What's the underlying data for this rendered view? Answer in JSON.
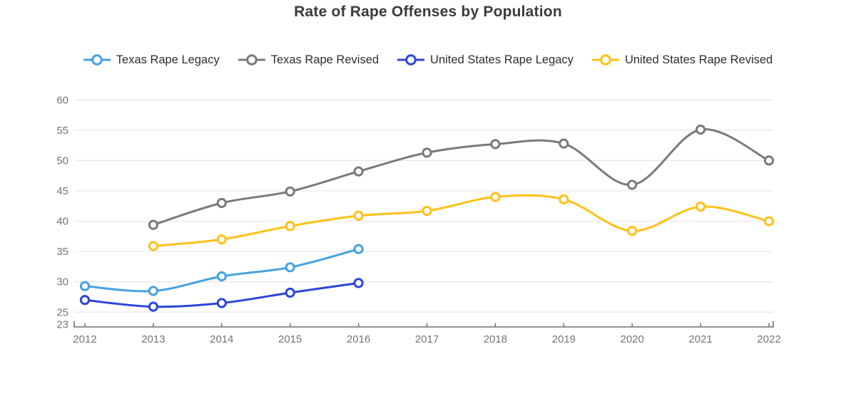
{
  "title": "Rate of Rape Offenses by Population",
  "axes": {
    "y_tick_labels": [
      "60",
      "55",
      "50",
      "45",
      "40",
      "35",
      "30",
      "25",
      "23"
    ],
    "x_tick_labels": [
      "2012",
      "2013",
      "2014",
      "2015",
      "2016",
      "2017",
      "2018",
      "2019",
      "2020",
      "2021",
      "2022"
    ]
  },
  "palette": {
    "texas_legacy": "#45a1e2",
    "texas_revised": "#7a7a7a",
    "us_legacy": "#2b46d9",
    "us_revised": "#ffc115",
    "grid": "#e8e8e8",
    "axis": "#6e6e6e",
    "tick_label": "#757575",
    "title_text": "#3b3b3b"
  },
  "chart_data": {
    "type": "line",
    "title": "Rate of Rape Offenses by Population",
    "x": [
      2012,
      2013,
      2014,
      2015,
      2016,
      2017,
      2018,
      2019,
      2020,
      2021,
      2022
    ],
    "series": [
      {
        "name": "Texas Rape Legacy",
        "color": "#45a1e2",
        "values": [
          29.3,
          28.5,
          30.9,
          32.4,
          35.4,
          null,
          null,
          null,
          null,
          null,
          null
        ]
      },
      {
        "name": "Texas Rape Revised",
        "color": "#7a7a7a",
        "values": [
          null,
          39.4,
          43.0,
          44.9,
          48.2,
          51.3,
          52.7,
          52.8,
          46.0,
          55.1,
          50.0
        ]
      },
      {
        "name": "United States Rape Legacy",
        "color": "#2b46d9",
        "values": [
          27.0,
          25.9,
          26.5,
          28.2,
          29.8,
          null,
          null,
          null,
          null,
          null,
          null
        ]
      },
      {
        "name": "United States Rape Revised",
        "color": "#ffc115",
        "values": [
          null,
          35.9,
          37.0,
          39.2,
          40.9,
          41.7,
          44.0,
          43.6,
          38.4,
          42.4,
          40.0
        ]
      }
    ],
    "y_ticks": [
      23,
      25,
      30,
      35,
      40,
      45,
      50,
      55,
      60
    ],
    "ylim": [
      23,
      60
    ],
    "xlabel": "",
    "ylabel": "",
    "grid": "horizontal",
    "legend_position": "top",
    "curve": "smooth",
    "markers": "open-circle"
  }
}
